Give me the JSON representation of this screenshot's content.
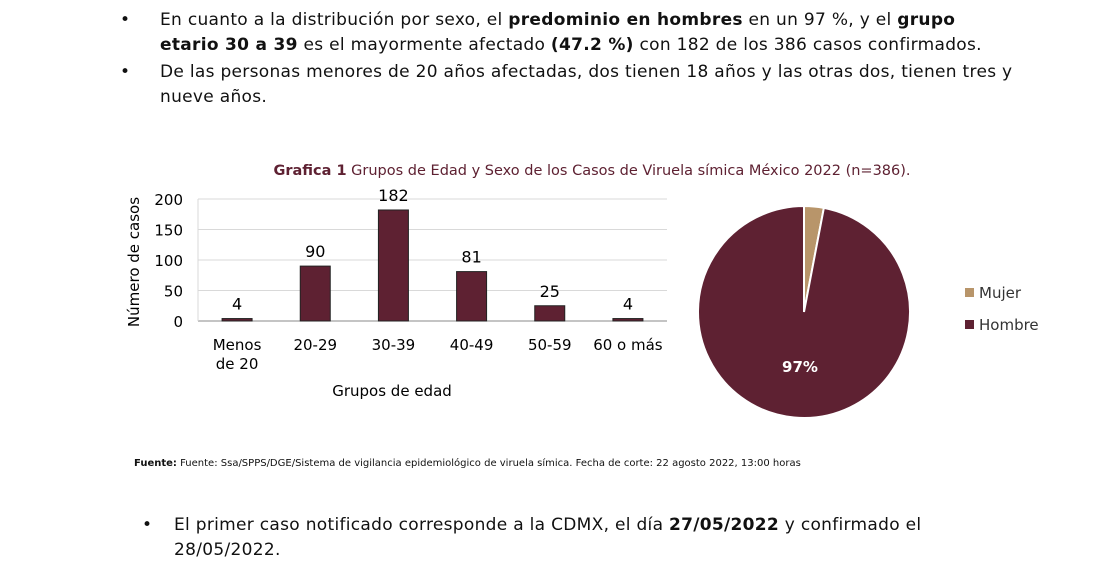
{
  "bullets": [
    {
      "parts": [
        "En cuanto a la distribución por sexo, el ",
        "predominio en hombres",
        " en un 97 %, y el ",
        "grupo etario 30 a 39",
        " es el mayormente afectado ",
        "(47.2 %)",
        " con 182 de los 386 casos confirmados."
      ]
    },
    {
      "parts": [
        "De las personas menores de 20 años afectadas, dos tienen 18 años y las otras dos, tienen tres y nueve años."
      ]
    },
    {
      "parts": [
        "El primer caso notificado corresponde a la CDMX, el día ",
        "27/05/2022",
        " y confirmado el 28/05/2022."
      ]
    }
  ],
  "bullet_symbol": "•",
  "chart_title": {
    "bold": "Grafica 1",
    "rest": " Grupos de Edad y Sexo de los Casos de Viruela símica México 2022 (n=386)."
  },
  "chart_data": [
    {
      "type": "bar",
      "categories": [
        "Menos de 20",
        "20-29",
        "30-39",
        "40-49",
        "50-59",
        "60 o más"
      ],
      "values": [
        4,
        90,
        182,
        81,
        25,
        4
      ],
      "xlabel": "Grupos de edad",
      "ylabel": "Número de casos",
      "ylim": [
        0,
        200
      ],
      "yticks": [
        0,
        50,
        100,
        150,
        200
      ],
      "grid": true,
      "color": "#5e2132"
    },
    {
      "type": "pie",
      "slices": [
        {
          "name": "Mujer",
          "value": 3,
          "label": "3%",
          "color": "#b8956a"
        },
        {
          "name": "Hombre",
          "value": 97,
          "label": "97%",
          "color": "#5e2132"
        }
      ],
      "legend": "right"
    }
  ],
  "source": {
    "label": "Fuente:",
    "text": " Fuente: Ssa/SPPS/DGE/Sistema de vigilancia epidemiológico de viruela símica. Fecha de corte: 22 agosto 2022, 13:00 horas"
  }
}
